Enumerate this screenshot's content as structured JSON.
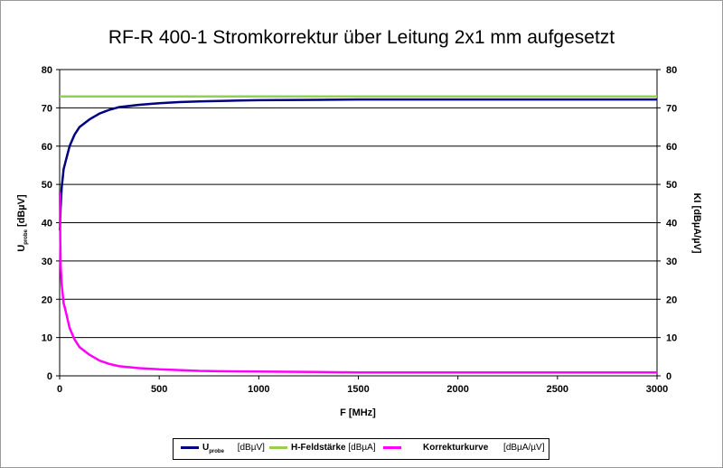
{
  "title": "RF-R 400-1 Stromkorrektur über Leitung 2x1 mm aufgesetzt",
  "chart_data": {
    "type": "line",
    "title": "RF-R 400-1 Stromkorrektur über Leitung 2x1 mm aufgesetzt",
    "xlabel": "F [MHz]",
    "ylabel_main": "U",
    "ylabel_sub": "probe",
    "ylabel_unit": "[dBµV]",
    "y2label": "KI [dBµA/µV]",
    "xlim": [
      0,
      3000
    ],
    "ylim": [
      0,
      80
    ],
    "y2lim": [
      0,
      80
    ],
    "x_ticks": [
      0,
      500,
      1000,
      1500,
      2000,
      2500,
      3000
    ],
    "y_ticks": [
      0,
      10,
      20,
      30,
      40,
      50,
      60,
      70,
      80
    ],
    "y2_ticks": [
      0,
      10,
      20,
      30,
      40,
      50,
      60,
      70,
      80
    ],
    "grid": "horizontal",
    "legend_placement": "bottom",
    "series": [
      {
        "name": "U",
        "name_sub": "probe",
        "unit": "[dBµV]",
        "color": "#000080",
        "x": [
          1,
          5,
          10,
          20,
          30,
          50,
          75,
          100,
          150,
          200,
          250,
          300,
          400,
          500,
          600,
          700,
          800,
          900,
          1000,
          1300,
          1500,
          2000,
          2500,
          3000
        ],
        "y": [
          38,
          44,
          49,
          54,
          56,
          60,
          63,
          65,
          67,
          68.5,
          69.5,
          70.2,
          70.8,
          71.2,
          71.5,
          71.7,
          71.8,
          71.9,
          72,
          72.1,
          72.2,
          72.2,
          72.2,
          72.2
        ]
      },
      {
        "name": "H-Feldstärke",
        "unit": "[dBµA]",
        "color": "#92d050",
        "x": [
          0,
          3000
        ],
        "y": [
          73,
          73
        ]
      },
      {
        "name": "Korrekturkurve",
        "unit": "[dBµA/µV]",
        "color": "#ff00ff",
        "x": [
          1,
          3,
          5,
          10,
          20,
          30,
          50,
          75,
          100,
          150,
          200,
          250,
          300,
          400,
          500,
          600,
          700,
          800,
          1000,
          1300,
          1500,
          2000,
          2500,
          3000
        ],
        "y": [
          48,
          35,
          29,
          24,
          19,
          17,
          12.5,
          9.5,
          7.5,
          5.5,
          4,
          3.1,
          2.5,
          2,
          1.7,
          1.5,
          1.3,
          1.2,
          1.1,
          1.0,
          0.9,
          0.9,
          0.9,
          0.9
        ]
      }
    ]
  }
}
